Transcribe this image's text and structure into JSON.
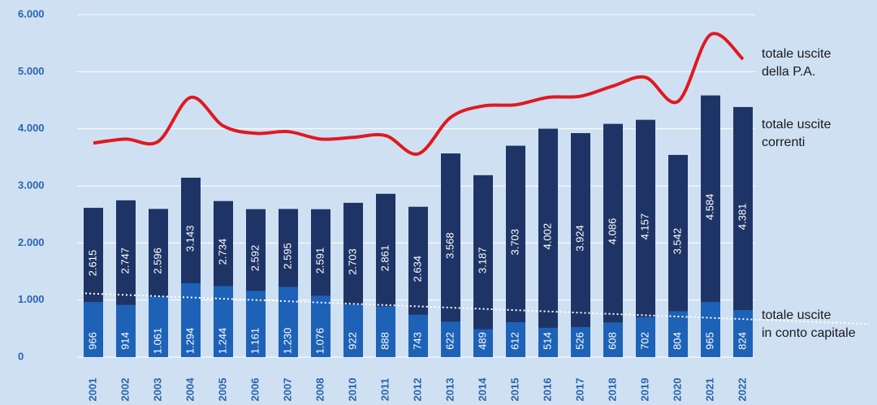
{
  "chart_data": {
    "type": "bar",
    "categories": [
      "2001",
      "2002",
      "2003",
      "2004",
      "2005",
      "2006",
      "2007",
      "2008",
      "2010",
      "2011",
      "2012",
      "2013",
      "2014",
      "2015",
      "2016",
      "2017",
      "2018",
      "2019",
      "2020",
      "2021",
      "2022"
    ],
    "ylim": [
      0,
      6000
    ],
    "yticks": [
      0,
      {
        "value": 1000,
        "label": "1.000"
      },
      {
        "value": 2000,
        "label": "2.000"
      },
      {
        "value": 3000,
        "label": "3.000"
      },
      {
        "value": 4000,
        "label": "4.000"
      },
      {
        "value": 5000,
        "label": "5.000"
      },
      {
        "value": 6000,
        "label": "6.000"
      }
    ],
    "grid": true,
    "series": [
      {
        "name": "totale uscite\ncorrenti",
        "type": "bar",
        "color": "#1f3466",
        "values": [
          2615,
          2747,
          2596,
          3143,
          2734,
          2592,
          2595,
          2591,
          2703,
          2861,
          2634,
          3568,
          3187,
          3703,
          4002,
          3924,
          4086,
          4157,
          3542,
          4584,
          4381
        ],
        "value_labels": [
          "2.615",
          "2.747",
          "2.596",
          "3.143",
          "2.734",
          "2.592",
          "2.595",
          "2.591",
          "2.703",
          "2.861",
          "2.634",
          "3.568",
          "3.187",
          "3.703",
          "4.002",
          "3.924",
          "4.086",
          "4.157",
          "3.542",
          "4.584",
          "4.381"
        ]
      },
      {
        "name": "totale uscite\nin conto capitale",
        "type": "bar",
        "color": "#1d62b7",
        "values": [
          966,
          914,
          1061,
          1294,
          1244,
          1161,
          1230,
          1076,
          922,
          888,
          743,
          622,
          489,
          612,
          514,
          526,
          608,
          702,
          804,
          965,
          824
        ],
        "value_labels": [
          "966",
          "914",
          "1.061",
          "1.294",
          "1.244",
          "1.161",
          "1.230",
          "1.076",
          "922",
          "888",
          "743",
          "622",
          "489",
          "612",
          "514",
          "526",
          "608",
          "702",
          "804",
          "965",
          "824"
        ]
      },
      {
        "name": "totale uscite\ndella P.A.",
        "type": "line",
        "color": "#e0191f",
        "values": [
          3750,
          3820,
          3780,
          4550,
          4050,
          3920,
          3950,
          3820,
          3850,
          3880,
          3560,
          4200,
          4400,
          4420,
          4550,
          4570,
          4750,
          4900,
          4480,
          5650,
          5220
        ]
      }
    ],
    "trend_line": {
      "color": "#ffffff",
      "values": [
        1120,
        580
      ]
    }
  }
}
